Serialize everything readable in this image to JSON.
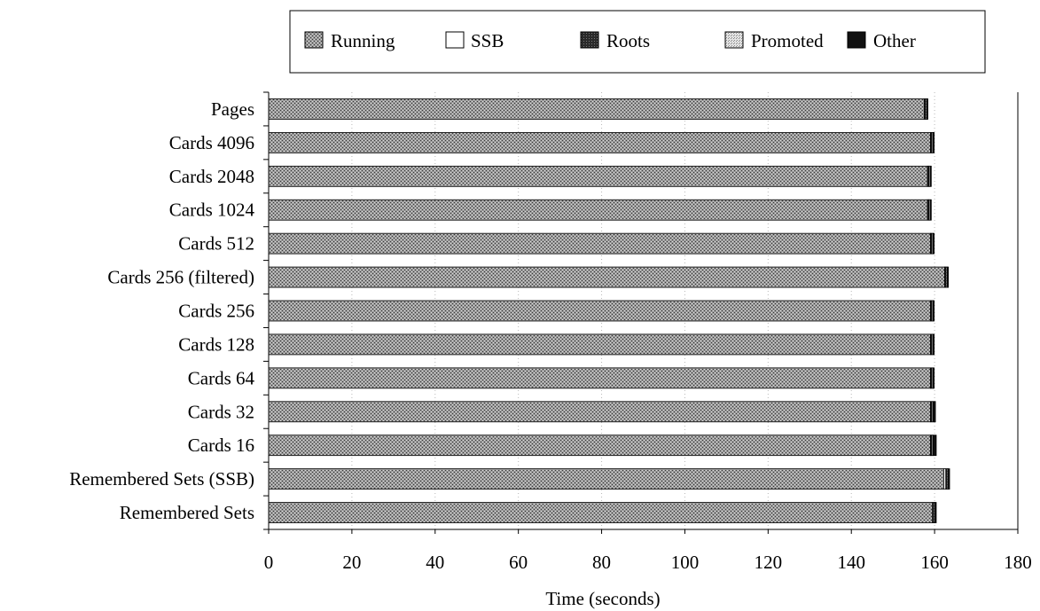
{
  "chart_data": {
    "type": "bar",
    "orientation": "horizontal",
    "stacked": true,
    "xlabel": "Time (seconds)",
    "ylabel": "",
    "xlim": [
      0,
      180
    ],
    "x_ticks": [
      0,
      20,
      40,
      60,
      80,
      100,
      120,
      140,
      160,
      180
    ],
    "grid": true,
    "legend_position": "top",
    "categories": [
      "Pages",
      "Cards 4096",
      "Cards 2048",
      "Cards 1024",
      "Cards 512",
      "Cards 256 (filtered)",
      "Cards 256",
      "Cards 128",
      "Cards 64",
      "Cards 32",
      "Cards 16",
      "Remembered Sets (SSB)",
      "Remembered Sets"
    ],
    "series": [
      {
        "name": "Running",
        "color": "#8c8c8c",
        "values": [
          157.5,
          159.0,
          158.3,
          158.3,
          159.0,
          162.4,
          159.0,
          159.0,
          159.0,
          159.0,
          159.0,
          162.2,
          159.5
        ]
      },
      {
        "name": "SSB",
        "color": "#ffffff",
        "values": [
          0,
          0,
          0,
          0,
          0,
          0,
          0,
          0,
          0,
          0,
          0,
          0.5,
          0
        ]
      },
      {
        "name": "Roots",
        "color": "#3a3a3a",
        "values": [
          0.3,
          0.3,
          0.3,
          0.3,
          0.3,
          0.3,
          0.3,
          0.3,
          0.3,
          0.3,
          0.3,
          0.3,
          0.3
        ]
      },
      {
        "name": "Promoted",
        "color": "#c8c8c8",
        "values": [
          0.3,
          0.3,
          0.3,
          0.3,
          0.3,
          0.3,
          0.3,
          0.3,
          0.3,
          0.3,
          0.3,
          0.3,
          0.3
        ]
      },
      {
        "name": "Other",
        "color": "#111111",
        "values": [
          0.3,
          0.3,
          0.3,
          0.3,
          0.3,
          0.3,
          0.3,
          0.3,
          0.3,
          0.6,
          0.8,
          0.3,
          0.3
        ]
      }
    ]
  }
}
